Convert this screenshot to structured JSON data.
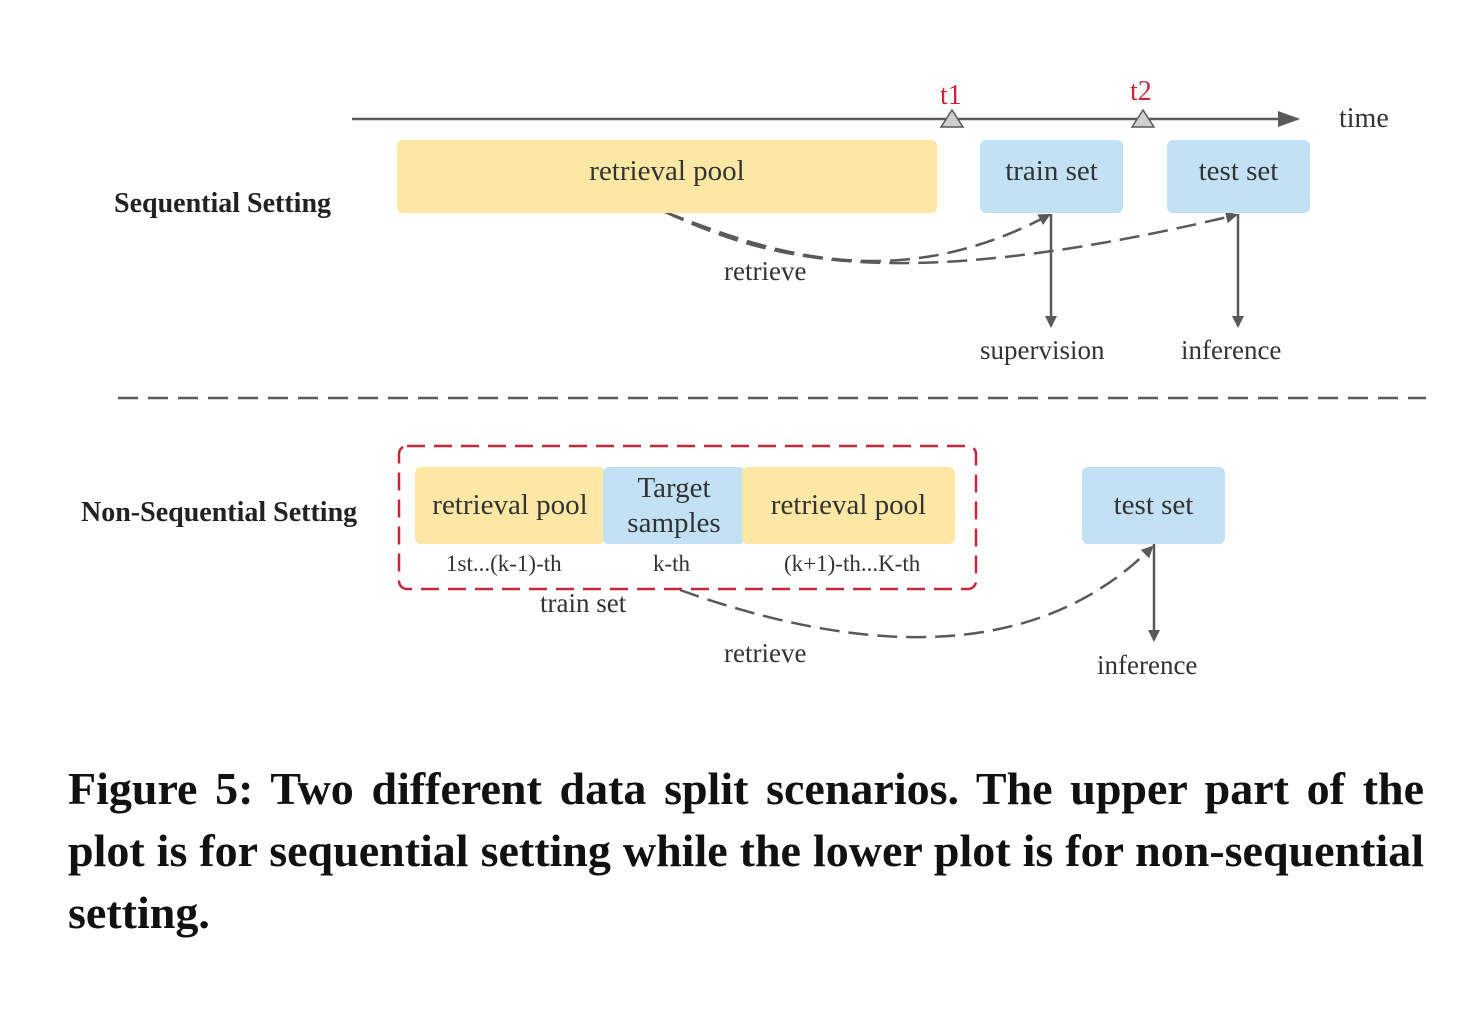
{
  "timeline": {
    "axis_label": "time",
    "t1": "t1",
    "t2": "t2"
  },
  "sequential": {
    "title": "Sequential Setting",
    "retrieval_pool": "retrieval pool",
    "train_set": "train set",
    "test_set": "test set",
    "retrieve": "retrieve",
    "supervision": "supervision",
    "inference": "inference"
  },
  "non_sequential": {
    "title": "Non-Sequential Setting",
    "retrieval_pool_left": "retrieval pool",
    "target_samples": "Target samples",
    "retrieval_pool_right": "retrieval pool",
    "range_left": "1st...(k-1)-th",
    "range_mid": "k-th",
    "range_right": "(k+1)-th...K-th",
    "train_set": "train set",
    "test_set": "test set",
    "retrieve": "retrieve",
    "inference": "inference"
  },
  "caption": "Figure 5: Two different data split scenarios. The upper part of the plot is for sequential setting while the lower plot is for non-sequential setting.",
  "colors": {
    "pool": "#fce8a4",
    "set": "#c2e1f4",
    "accent": "#c5283d",
    "line": "#595959"
  }
}
